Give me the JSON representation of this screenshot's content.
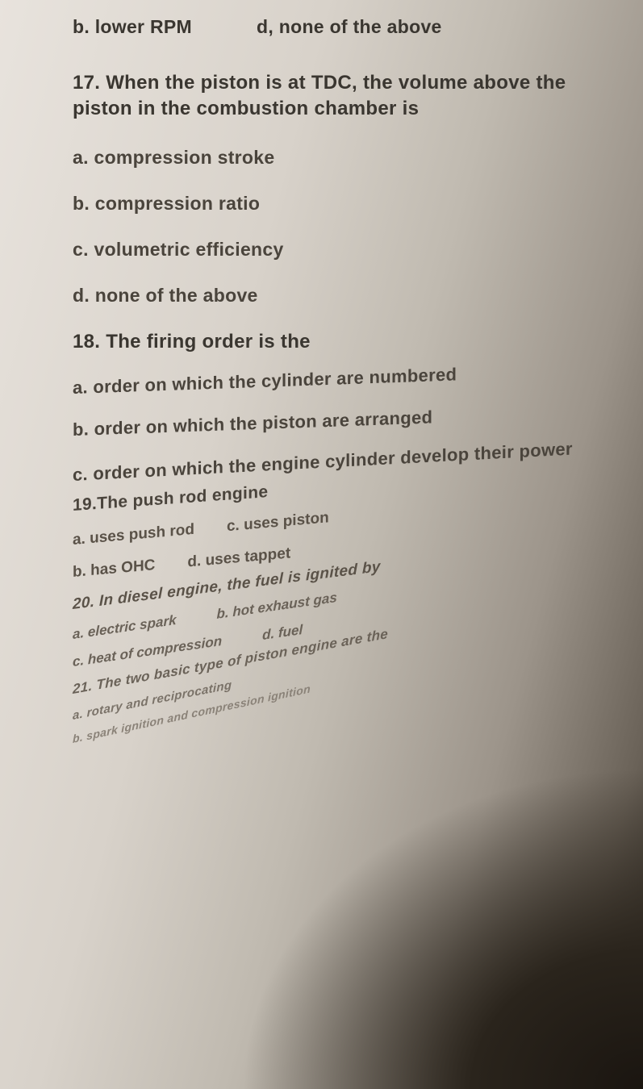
{
  "q16": {
    "opt_b": "b. lower RPM",
    "opt_d": "d, none of the above"
  },
  "q17": {
    "text": "17. When the piston is at TDC, the volume above the piston in the combustion chamber is",
    "a": "a. compression stroke",
    "b": "b. compression ratio",
    "c": "c. volumetric efficiency",
    "d": "d. none of the above"
  },
  "q18": {
    "text": "18. The firing order is the",
    "a": "a. order on which the cylinder are numbered",
    "b": "b. order on which the piston are arranged",
    "c": "c. order on which the engine cylinder develop their power"
  },
  "q19": {
    "text": "19.The push rod engine",
    "a": "a. uses push rod",
    "c": "c. uses piston",
    "b": "b. has OHC",
    "d": "d. uses tappet"
  },
  "q20": {
    "text": "20. In diesel engine, the fuel is ignited by",
    "a": "a. electric spark",
    "b": "b. hot exhaust gas",
    "c": "c. heat of compression",
    "d": "d. fuel"
  },
  "q21": {
    "text": "21. The two basic type of piston engine are the",
    "a": "a. rotary and reciprocating",
    "b": "b. spark ignition and compression ignition"
  }
}
